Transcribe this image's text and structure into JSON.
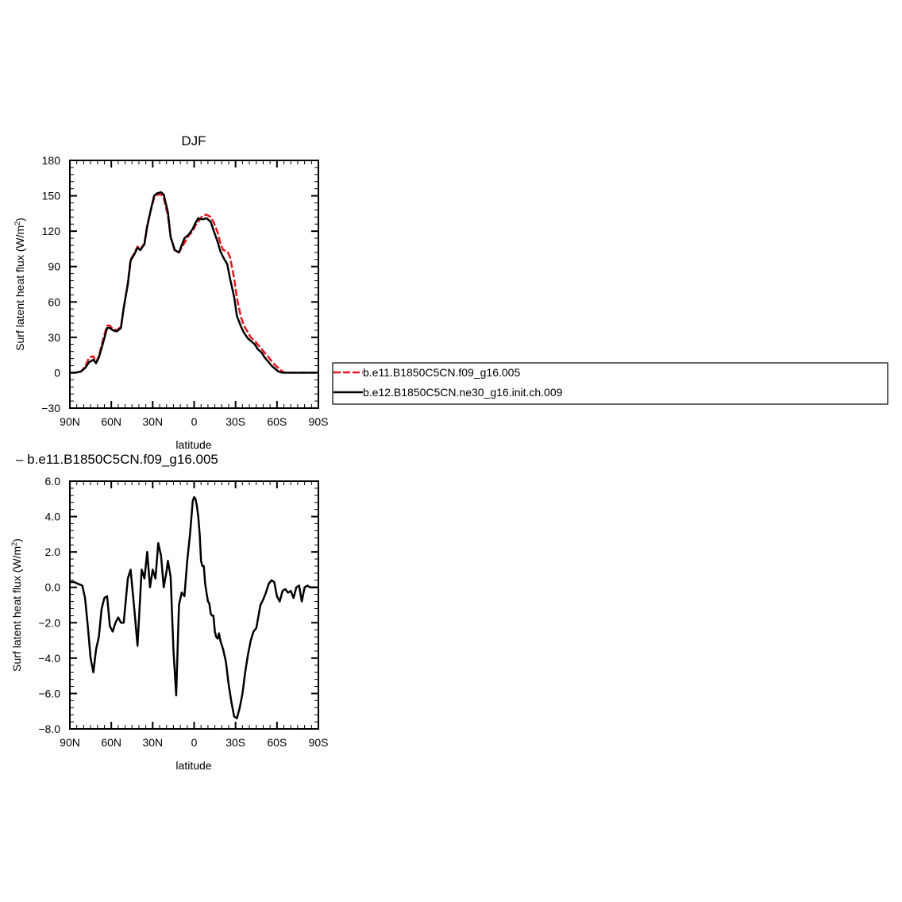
{
  "chart_data": [
    {
      "type": "line",
      "title": "DJF",
      "xlabel": "latitude",
      "ylabel": "Surf latent heat flux (W/m²)",
      "xlim": [
        90,
        -90
      ],
      "ylim": [
        -30,
        180
      ],
      "x_ticks": [
        90,
        60,
        30,
        0,
        -30,
        -60,
        -90
      ],
      "x_tick_labels": [
        "90N",
        "60N",
        "30N",
        "0",
        "30S",
        "60S",
        "90S"
      ],
      "y_ticks": [
        -30,
        0,
        30,
        60,
        90,
        120,
        150,
        180
      ],
      "y_tick_labels": [
        "−30",
        "0",
        "30",
        "60",
        "90",
        "120",
        "150",
        "180"
      ],
      "legend_position": "right",
      "series": [
        {
          "name": "b.e11.B1850C5CN.f09_g16.005",
          "color": "#e8141b",
          "dash": "dashed",
          "x": [
            90,
            86,
            82,
            79,
            76,
            73,
            71,
            69,
            66,
            63,
            61,
            59,
            56,
            53,
            51,
            48,
            46,
            43,
            41,
            39,
            36,
            34,
            31,
            29,
            27,
            24,
            22,
            19,
            17,
            14,
            11,
            9,
            7,
            4,
            1,
            -1,
            -3,
            -6,
            -9,
            -12,
            -14,
            -17,
            -19,
            -21,
            -24,
            -26,
            -29,
            -31,
            -34,
            -36,
            -39,
            -41,
            -44,
            -46,
            -49,
            -51,
            -54,
            -56,
            -59,
            -61,
            -64,
            -66,
            -69,
            -71,
            -74,
            -76,
            -79,
            -82,
            -85,
            -90
          ],
          "y": [
            0,
            0,
            1,
            5,
            13,
            14,
            9,
            14,
            28,
            40,
            40,
            37,
            36,
            39,
            55,
            76,
            96,
            102,
            107,
            104,
            110,
            125,
            140,
            148,
            151,
            151,
            148,
            133,
            115,
            103,
            102,
            106,
            110,
            116,
            120,
            125,
            128,
            133,
            134,
            132,
            128,
            119,
            110,
            104,
            103,
            98,
            80,
            63,
            47,
            40,
            34,
            30,
            27,
            24,
            20,
            17,
            13,
            10,
            6,
            4,
            1,
            0,
            0,
            0,
            0,
            0,
            0,
            0,
            0,
            0
          ]
        },
        {
          "name": "b.e12.B1850C5CN.ne30_g16.init.ch.009",
          "color": "#000000",
          "dash": "solid",
          "x": [
            90,
            86,
            82,
            79,
            76,
            73,
            71,
            69,
            66,
            63,
            61,
            59,
            56,
            53,
            51,
            48,
            46,
            43,
            41,
            39,
            36,
            34,
            31,
            29,
            27,
            24,
            22,
            19,
            17,
            14,
            11,
            9,
            7,
            4,
            1,
            -1,
            -3,
            -6,
            -9,
            -12,
            -14,
            -17,
            -19,
            -21,
            -24,
            -26,
            -29,
            -31,
            -34,
            -36,
            -39,
            -41,
            -44,
            -46,
            -49,
            -51,
            -54,
            -56,
            -59,
            -61,
            -64,
            -66,
            -69,
            -71,
            -74,
            -76,
            -79,
            -82,
            -85,
            -90
          ],
          "y": [
            0,
            0,
            1,
            4,
            9,
            11,
            8,
            13,
            25,
            38,
            38,
            36,
            35,
            38,
            55,
            75,
            95,
            101,
            106,
            104,
            109,
            124,
            140,
            150,
            152,
            153,
            151,
            136,
            115,
            104,
            102,
            108,
            114,
            117,
            122,
            127,
            131,
            130,
            131,
            128,
            121,
            111,
            103,
            98,
            92,
            80,
            64,
            48,
            39,
            34,
            29,
            27,
            24,
            20,
            17,
            13,
            9,
            6,
            3,
            1,
            0,
            0,
            0,
            0,
            0,
            0,
            0,
            0,
            0,
            0
          ]
        }
      ]
    },
    {
      "type": "line",
      "title": "– b.e11.B1850C5CN.f09_g16.005",
      "xlabel": "latitude",
      "ylabel": "Surf latent heat flux (W/m²)",
      "xlim": [
        90,
        -90
      ],
      "ylim": [
        -8,
        6
      ],
      "x_ticks": [
        90,
        60,
        30,
        0,
        -30,
        -60,
        -90
      ],
      "x_tick_labels": [
        "90N",
        "60N",
        "30N",
        "0",
        "30S",
        "60S",
        "90S"
      ],
      "y_ticks": [
        -8,
        -6,
        -4,
        -2,
        0,
        2,
        4,
        6
      ],
      "y_tick_labels": [
        "−8.0",
        "−6.0",
        "−4.0",
        "−2.0",
        "0.0",
        "2.0",
        "4.0",
        "6.0"
      ],
      "series": [
        {
          "name": "",
          "color": "#000000",
          "dash": "solid",
          "x": [
            90,
            87,
            84,
            81,
            79,
            77,
            75,
            73,
            71,
            69,
            67,
            65,
            63,
            61,
            59,
            57,
            55,
            53,
            51,
            48,
            46,
            43,
            41,
            38,
            36,
            34,
            32,
            30,
            28,
            26,
            24,
            22,
            20,
            19,
            17,
            15,
            13,
            11,
            9,
            7,
            5,
            3,
            1,
            0,
            -1,
            -2,
            -3,
            -4,
            -5,
            -6,
            -7,
            -8,
            -9,
            -10,
            -11,
            -12,
            -13,
            -14,
            -15,
            -16,
            -17,
            -18,
            -19,
            -21,
            -23,
            -25,
            -27,
            -29,
            -31,
            -33,
            -35,
            -37,
            -39,
            -41,
            -43,
            -45,
            -48,
            -50,
            -52,
            -54,
            -56,
            -58,
            -60,
            -62,
            -64,
            -66,
            -68,
            -70,
            -72,
            -74,
            -76,
            -78,
            -80,
            -82,
            -84,
            -86,
            -88,
            -90
          ],
          "y": [
            0.3,
            0.3,
            0.2,
            0.1,
            -0.6,
            -2.2,
            -4.0,
            -4.8,
            -3.5,
            -2.8,
            -1.2,
            -0.6,
            -0.5,
            -2.2,
            -2.5,
            -2.0,
            -1.7,
            -2.0,
            -2.0,
            0.5,
            1.0,
            -1.5,
            -3.3,
            1.0,
            0.5,
            2.0,
            0.0,
            1.0,
            0.5,
            2.5,
            1.8,
            0.0,
            0.9,
            1.5,
            0.6,
            -3.5,
            -6.1,
            -1.0,
            -0.3,
            -0.5,
            1.5,
            3.0,
            4.9,
            5.1,
            5.0,
            4.6,
            4.0,
            3.0,
            1.5,
            1.2,
            1.2,
            0.2,
            -0.3,
            -0.8,
            -0.9,
            -1.5,
            -1.6,
            -1.6,
            -2.5,
            -2.8,
            -2.9,
            -2.6,
            -3.0,
            -3.5,
            -4.2,
            -5.5,
            -6.5,
            -7.3,
            -7.4,
            -6.8,
            -6.0,
            -4.8,
            -3.8,
            -3.0,
            -2.5,
            -2.3,
            -1.0,
            -0.7,
            -0.3,
            0.2,
            0.4,
            0.3,
            -0.5,
            -0.8,
            -0.2,
            -0.1,
            -0.3,
            -0.2,
            -0.6,
            0.0,
            0.1,
            -0.8,
            0.0,
            0.1,
            0.0,
            0.0,
            0.0,
            0.0
          ]
        }
      ]
    }
  ]
}
